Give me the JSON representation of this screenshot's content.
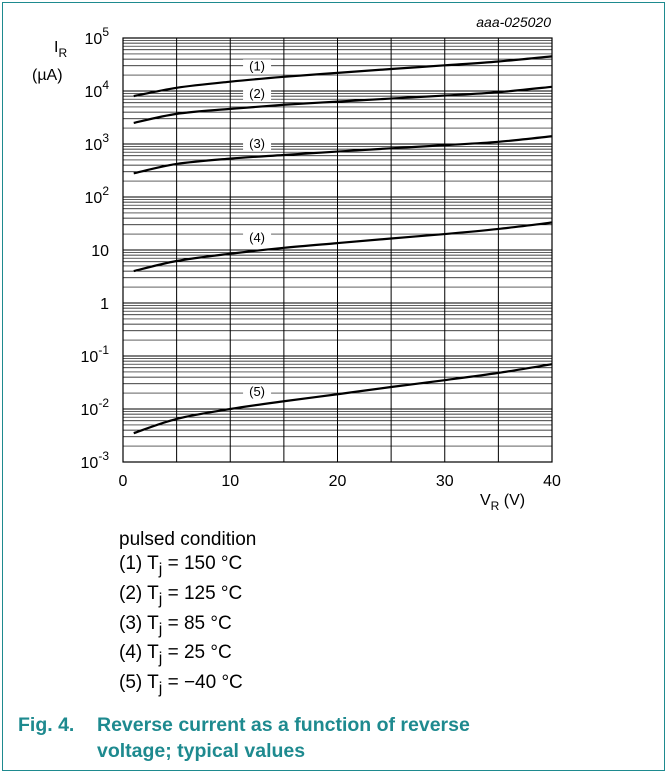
{
  "chart_data": {
    "type": "line",
    "figure_code": "aaa-025020",
    "ylabel": "I",
    "ylabel_sub": "R",
    "yunit": "(µA)",
    "xlabel": "V",
    "xlabel_sub": "R",
    "xunit": " (V)",
    "xlim": [
      0,
      40
    ],
    "ylim": [
      0.001,
      100000
    ],
    "yscale": "log",
    "grid": true,
    "x_ticks": [
      "0",
      "10",
      "20",
      "30",
      "40"
    ],
    "y_ticks": [
      {
        "base": "10",
        "exp": "5"
      },
      {
        "base": "10",
        "exp": "4"
      },
      {
        "base": "10",
        "exp": "3"
      },
      {
        "base": "10",
        "exp": "2"
      },
      {
        "base": "10",
        "exp": ""
      },
      {
        "base": "1",
        "exp": ""
      },
      {
        "base": "10",
        "exp": "-1"
      },
      {
        "base": "10",
        "exp": "-2"
      },
      {
        "base": "10",
        "exp": "-3"
      }
    ],
    "series": [
      {
        "label": "(1)",
        "x": [
          1,
          5,
          10,
          15,
          20,
          25,
          30,
          35,
          40
        ],
        "y": [
          8000,
          11500,
          15000,
          18500,
          22000,
          26000,
          30500,
          36000,
          45000
        ]
      },
      {
        "label": "(2)",
        "x": [
          1,
          5,
          10,
          15,
          20,
          25,
          30,
          35,
          40
        ],
        "y": [
          2500,
          3700,
          4600,
          5500,
          6300,
          7200,
          8200,
          9500,
          12000
        ]
      },
      {
        "label": "(3)",
        "x": [
          1,
          5,
          10,
          15,
          20,
          25,
          30,
          35,
          40
        ],
        "y": [
          280,
          420,
          530,
          620,
          720,
          830,
          950,
          1100,
          1400
        ]
      },
      {
        "label": "(4)",
        "x": [
          1,
          5,
          10,
          15,
          20,
          25,
          30,
          35,
          40
        ],
        "y": [
          4,
          6.2,
          8.5,
          11,
          13.5,
          16.5,
          20,
          25,
          33
        ]
      },
      {
        "label": "(5)",
        "x": [
          1,
          5,
          10,
          15,
          20,
          25,
          30,
          35,
          40
        ],
        "y": [
          0.0035,
          0.0065,
          0.01,
          0.014,
          0.019,
          0.026,
          0.035,
          0.048,
          0.07
        ]
      }
    ]
  },
  "conditions": {
    "title": "pulsed condition",
    "lines": [
      {
        "prefix": "(1) T",
        "sub": "j",
        "value": " = 150 °C"
      },
      {
        "prefix": "(2) T",
        "sub": "j",
        "value": " = 125 °C"
      },
      {
        "prefix": "(3) T",
        "sub": "j",
        "value": " = 85 °C"
      },
      {
        "prefix": "(4) T",
        "sub": "j",
        "value": " = 25 °C"
      },
      {
        "prefix": "(5) T",
        "sub": "j",
        "value": " = −40 °C"
      }
    ]
  },
  "caption": {
    "number": "Fig. 4.",
    "line1": "Reverse current as a function of reverse",
    "line2": "voltage; typical values"
  }
}
